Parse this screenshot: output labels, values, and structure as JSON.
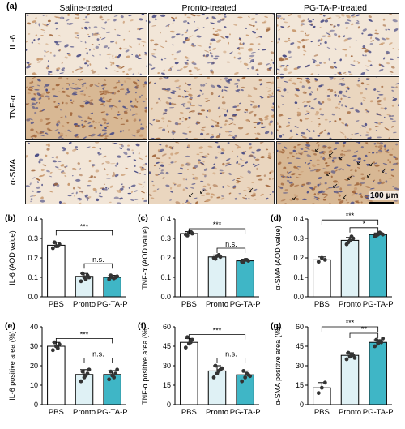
{
  "panel_a": {
    "letter": "(a)",
    "columns": [
      "Saline-treated",
      "Pronto-treated",
      "PG-TA-P-treated"
    ],
    "rows": [
      "IL-6",
      "TNF-α",
      "α-SMA"
    ],
    "scale_bar": "100 μm"
  },
  "colors": {
    "pbs": "#ffffff",
    "pronto": "#dff1f5",
    "pgtap": "#3fb6c6",
    "stain_light": "#efe3d2",
    "stain_dark": "#a87448"
  },
  "chart_data": [
    {
      "id": "b",
      "letter": "(b)",
      "type": "bar",
      "categories": [
        "PBS",
        "Pronto",
        "PG-TA-P"
      ],
      "values": [
        0.265,
        0.105,
        0.1
      ],
      "errors": [
        0.015,
        0.015,
        0.01
      ],
      "points": [
        [
          0.25,
          0.26,
          0.27,
          0.28,
          0.26
        ],
        [
          0.08,
          0.1,
          0.11,
          0.12,
          0.09,
          0.1
        ],
        [
          0.09,
          0.1,
          0.1,
          0.11,
          0.095,
          0.105
        ]
      ],
      "ylabel": "IL-6 (AOD value)",
      "ylim": [
        0,
        0.4
      ],
      "yticks": [
        0.0,
        0.1,
        0.2,
        0.3,
        0.4
      ],
      "sig": [
        {
          "from": 0,
          "to": 2,
          "label": "***",
          "y": 0.34
        },
        {
          "from": 1,
          "to": 2,
          "label": "n.s.",
          "y": 0.17
        }
      ]
    },
    {
      "id": "c",
      "letter": "(c)",
      "type": "bar",
      "categories": [
        "PBS",
        "Pronto",
        "PG-TA-P"
      ],
      "values": [
        0.325,
        0.205,
        0.185
      ],
      "errors": [
        0.01,
        0.01,
        0.008
      ],
      "points": [
        [
          0.32,
          0.33,
          0.325,
          0.315,
          0.335
        ],
        [
          0.2,
          0.21,
          0.205,
          0.195,
          0.215
        ],
        [
          0.18,
          0.19,
          0.185,
          0.18,
          0.19
        ]
      ],
      "ylabel": "TNF-α (AOD value)",
      "ylim": [
        0,
        0.4
      ],
      "yticks": [
        0.0,
        0.1,
        0.2,
        0.3,
        0.4
      ],
      "sig": [
        {
          "from": 0,
          "to": 2,
          "label": "***",
          "y": 0.35
        },
        {
          "from": 1,
          "to": 2,
          "label": "n.s.",
          "y": 0.25
        }
      ]
    },
    {
      "id": "d",
      "letter": "(d)",
      "type": "bar",
      "categories": [
        "PBS",
        "Pronto",
        "PG-TA-P"
      ],
      "values": [
        0.19,
        0.29,
        0.32
      ],
      "errors": [
        0.015,
        0.015,
        0.008
      ],
      "points": [
        [
          0.18,
          0.2,
          0.19
        ],
        [
          0.27,
          0.29,
          0.3,
          0.28,
          0.31
        ],
        [
          0.31,
          0.32,
          0.325,
          0.315,
          0.33,
          0.32
        ]
      ],
      "ylabel": "α-SMA (AOD value)",
      "ylim": [
        0,
        0.4
      ],
      "yticks": [
        0.0,
        0.1,
        0.2,
        0.3,
        0.4
      ],
      "sig": [
        {
          "from": 0,
          "to": 2,
          "label": "***",
          "y": 0.395
        },
        {
          "from": 1,
          "to": 2,
          "label": "*",
          "y": 0.355
        }
      ]
    },
    {
      "id": "e",
      "letter": "(e)",
      "type": "bar",
      "categories": [
        "PBS",
        "Pronto",
        "PG-TA-P"
      ],
      "values": [
        30,
        15.5,
        15.5
      ],
      "errors": [
        2,
        2.5,
        2
      ],
      "points": [
        [
          28,
          30,
          31,
          32,
          29
        ],
        [
          12,
          14,
          16,
          17,
          15,
          18
        ],
        [
          13,
          15,
          16,
          17,
          14,
          18
        ]
      ],
      "ylabel": "IL-6 positive area (%)",
      "ylim": [
        0,
        40
      ],
      "yticks": [
        0,
        10,
        20,
        30,
        40
      ],
      "sig": [
        {
          "from": 0,
          "to": 2,
          "label": "***",
          "y": 34
        },
        {
          "from": 1,
          "to": 2,
          "label": "n.s.",
          "y": 24
        }
      ]
    },
    {
      "id": "f",
      "letter": "(f)",
      "type": "bar",
      "categories": [
        "PBS",
        "Pronto",
        "PG-TA-P"
      ],
      "values": [
        48,
        26,
        23
      ],
      "errors": [
        3,
        4,
        3
      ],
      "points": [
        [
          44,
          47,
          50,
          52,
          48
        ],
        [
          21,
          24,
          27,
          30,
          26,
          28
        ],
        [
          18,
          21,
          23,
          26,
          24,
          22
        ]
      ],
      "ylabel": "TNF-α positive area (%)",
      "ylim": [
        0,
        60
      ],
      "yticks": [
        0,
        15,
        30,
        45,
        60
      ],
      "sig": [
        {
          "from": 0,
          "to": 2,
          "label": "***",
          "y": 54
        },
        {
          "from": 1,
          "to": 2,
          "label": "n.s.",
          "y": 36
        }
      ]
    },
    {
      "id": "g",
      "letter": "(g)",
      "type": "bar",
      "categories": [
        "PBS",
        "Pronto",
        "PG-TA-P"
      ],
      "values": [
        13,
        38,
        48
      ],
      "errors": [
        4,
        2,
        2
      ],
      "points": [
        [
          9,
          13,
          17
        ],
        [
          35,
          37,
          38,
          40,
          39,
          36
        ],
        [
          45,
          47,
          48,
          50,
          49,
          51
        ]
      ],
      "ylabel": "α-SMA positive area (%)",
      "ylim": [
        0,
        60
      ],
      "yticks": [
        0,
        15,
        30,
        45,
        60
      ],
      "sig": [
        {
          "from": 0,
          "to": 2,
          "label": "***",
          "y": 60
        },
        {
          "from": 1,
          "to": 2,
          "label": "**",
          "y": 55
        }
      ]
    }
  ]
}
